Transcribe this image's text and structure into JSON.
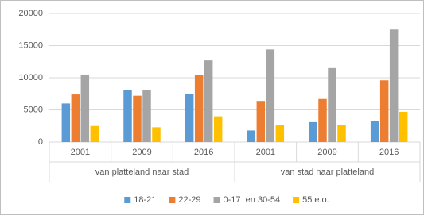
{
  "chart_data": {
    "type": "bar",
    "groups": [
      {
        "name": "van platteland naar stad",
        "categories": [
          "2001",
          "2009",
          "2016"
        ]
      },
      {
        "name": "van stad naar platteland",
        "categories": [
          "2001",
          "2009",
          "2016"
        ]
      }
    ],
    "series": [
      {
        "name": "18-21",
        "color": "#5b9bd5",
        "values": [
          6000,
          8100,
          7500,
          1800,
          3100,
          3300
        ]
      },
      {
        "name": "22-29",
        "color": "#ed7d31",
        "values": [
          7400,
          7200,
          10400,
          6400,
          6700,
          9600
        ]
      },
      {
        "name": "0-17  en 30-54",
        "color": "#a5a5a5",
        "values": [
          10500,
          8100,
          12700,
          14400,
          11500,
          17500
        ]
      },
      {
        "name": "55 e.o.",
        "color": "#ffc000",
        "values": [
          2500,
          2300,
          4000,
          2700,
          2700,
          4700
        ]
      }
    ],
    "ylim": [
      0,
      20000
    ],
    "yticks": [
      0,
      5000,
      10000,
      15000,
      20000
    ],
    "grid": true,
    "legend": "bottom"
  }
}
